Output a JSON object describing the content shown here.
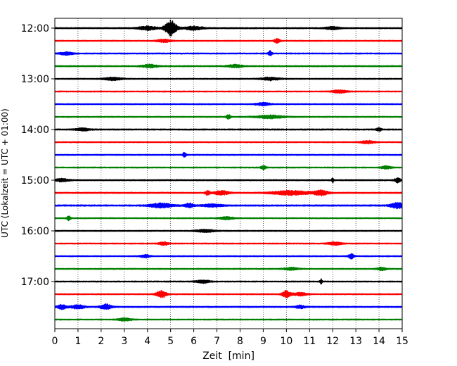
{
  "chart_data": {
    "type": "line",
    "title": "",
    "xlabel": "Zeit  [min]",
    "ylabel": "UTC (Lokalzeit = UTC + 01:00)",
    "xlim": [
      0,
      15
    ],
    "x_ticks": [
      0,
      1,
      2,
      3,
      4,
      5,
      6,
      7,
      8,
      9,
      10,
      11,
      12,
      13,
      14,
      15
    ],
    "x_tick_labels": [
      "0",
      "1",
      "2",
      "3",
      "4",
      "5",
      "6",
      "7",
      "8",
      "9",
      "10",
      "11",
      "12",
      "13",
      "14",
      "15"
    ],
    "y_tick_labels": [
      "12:00",
      "13:00",
      "14:00",
      "15:00",
      "16:00",
      "17:00"
    ],
    "x_grid": true,
    "grid_style": "dotted",
    "trace_interval_min": 15,
    "trace_colors": [
      "#000000",
      "#ff0000",
      "#0000ff",
      "#008000"
    ],
    "traces": [
      {
        "start": "12:00",
        "color": "#000000",
        "noise": 0.9,
        "events": [
          {
            "t": 5.0,
            "amp": 11,
            "width": 0.25
          },
          {
            "t": 4.0,
            "amp": 2.5,
            "width": 0.4
          },
          {
            "t": 6.0,
            "amp": 2.5,
            "width": 0.4
          },
          {
            "t": 12.0,
            "amp": 2,
            "width": 0.3
          }
        ]
      },
      {
        "start": "12:15",
        "color": "#ff0000",
        "noise": 0.8,
        "events": [
          {
            "t": 9.6,
            "amp": 3,
            "width": 0.12
          },
          {
            "t": 4.7,
            "amp": 2,
            "width": 0.3
          }
        ]
      },
      {
        "start": "12:30",
        "color": "#0000ff",
        "noise": 0.8,
        "events": [
          {
            "t": 9.3,
            "amp": 3.5,
            "width": 0.08
          },
          {
            "t": 0.5,
            "amp": 1.8,
            "width": 0.3
          }
        ]
      },
      {
        "start": "12:45",
        "color": "#008000",
        "noise": 0.9,
        "events": [
          {
            "t": 4.1,
            "amp": 2.2,
            "width": 0.3
          },
          {
            "t": 7.8,
            "amp": 2,
            "width": 0.3
          }
        ]
      },
      {
        "start": "13:00",
        "color": "#000000",
        "noise": 0.8,
        "events": [
          {
            "t": 2.5,
            "amp": 2,
            "width": 0.4
          },
          {
            "t": 9.3,
            "amp": 2,
            "width": 0.4
          }
        ]
      },
      {
        "start": "13:15",
        "color": "#ff0000",
        "noise": 0.8,
        "events": [
          {
            "t": 12.3,
            "amp": 2.2,
            "width": 0.3
          }
        ]
      },
      {
        "start": "13:30",
        "color": "#0000ff",
        "noise": 0.8,
        "events": [
          {
            "t": 9.0,
            "amp": 2,
            "width": 0.3
          }
        ]
      },
      {
        "start": "13:45",
        "color": "#008000",
        "noise": 0.8,
        "events": [
          {
            "t": 7.5,
            "amp": 3,
            "width": 0.1
          },
          {
            "t": 9.3,
            "amp": 2.2,
            "width": 0.6
          }
        ]
      },
      {
        "start": "14:00",
        "color": "#000000",
        "noise": 0.9,
        "events": [
          {
            "t": 14.0,
            "amp": 2.5,
            "width": 0.1
          },
          {
            "t": 1.2,
            "amp": 1.8,
            "width": 0.3
          }
        ]
      },
      {
        "start": "14:15",
        "color": "#ff0000",
        "noise": 0.8,
        "events": [
          {
            "t": 13.5,
            "amp": 2,
            "width": 0.3
          }
        ]
      },
      {
        "start": "14:30",
        "color": "#0000ff",
        "noise": 0.8,
        "events": [
          {
            "t": 5.6,
            "amp": 3.5,
            "width": 0.08
          }
        ]
      },
      {
        "start": "14:45",
        "color": "#008000",
        "noise": 0.8,
        "events": [
          {
            "t": 9.0,
            "amp": 2.8,
            "width": 0.1
          },
          {
            "t": 14.3,
            "amp": 2,
            "width": 0.2
          }
        ]
      },
      {
        "start": "15:00",
        "color": "#000000",
        "noise": 0.9,
        "events": [
          {
            "t": 12.0,
            "amp": 3.5,
            "width": 0.05
          },
          {
            "t": 14.8,
            "amp": 3.2,
            "width": 0.12
          },
          {
            "t": 0.3,
            "amp": 2,
            "width": 0.3
          }
        ]
      },
      {
        "start": "15:15",
        "color": "#ff0000",
        "noise": 0.9,
        "events": [
          {
            "t": 7.2,
            "amp": 3,
            "width": 0.3
          },
          {
            "t": 10.2,
            "amp": 3,
            "width": 0.8
          },
          {
            "t": 11.5,
            "amp": 3.5,
            "width": 0.3
          },
          {
            "t": 6.6,
            "amp": 3,
            "width": 0.1
          }
        ]
      },
      {
        "start": "15:30",
        "color": "#0000ff",
        "noise": 1.0,
        "events": [
          {
            "t": 4.6,
            "amp": 3,
            "width": 0.5
          },
          {
            "t": 5.8,
            "amp": 3,
            "width": 0.2
          },
          {
            "t": 14.8,
            "amp": 4,
            "width": 0.3
          },
          {
            "t": 6.8,
            "amp": 2,
            "width": 0.4
          }
        ]
      },
      {
        "start": "15:45",
        "color": "#008000",
        "noise": 0.8,
        "events": [
          {
            "t": 0.6,
            "amp": 3,
            "width": 0.08
          },
          {
            "t": 7.4,
            "amp": 1.8,
            "width": 0.3
          }
        ]
      },
      {
        "start": "16:00",
        "color": "#000000",
        "noise": 0.8,
        "events": [
          {
            "t": 6.5,
            "amp": 1.8,
            "width": 0.4
          }
        ]
      },
      {
        "start": "16:15",
        "color": "#ff0000",
        "noise": 0.8,
        "events": [
          {
            "t": 4.7,
            "amp": 2.2,
            "width": 0.2
          },
          {
            "t": 12.1,
            "amp": 2,
            "width": 0.3
          }
        ]
      },
      {
        "start": "16:30",
        "color": "#0000ff",
        "noise": 0.8,
        "events": [
          {
            "t": 12.8,
            "amp": 3.5,
            "width": 0.12
          },
          {
            "t": 3.9,
            "amp": 2,
            "width": 0.2
          }
        ]
      },
      {
        "start": "16:45",
        "color": "#008000",
        "noise": 0.8,
        "events": [
          {
            "t": 14.1,
            "amp": 2,
            "width": 0.2
          },
          {
            "t": 10.2,
            "amp": 1.8,
            "width": 0.3
          }
        ]
      },
      {
        "start": "17:00",
        "color": "#000000",
        "noise": 0.8,
        "events": [
          {
            "t": 11.5,
            "amp": 3.5,
            "width": 0.05
          },
          {
            "t": 6.4,
            "amp": 2,
            "width": 0.3
          }
        ]
      },
      {
        "start": "17:15",
        "color": "#ff0000",
        "noise": 0.8,
        "events": [
          {
            "t": 4.6,
            "amp": 5,
            "width": 0.22
          },
          {
            "t": 10.0,
            "amp": 5,
            "width": 0.18
          },
          {
            "t": 10.6,
            "amp": 2,
            "width": 0.3
          }
        ]
      },
      {
        "start": "17:30",
        "color": "#0000ff",
        "noise": 0.9,
        "events": [
          {
            "t": 0.3,
            "amp": 3,
            "width": 0.2
          },
          {
            "t": 2.2,
            "amp": 3.5,
            "width": 0.25
          },
          {
            "t": 1.0,
            "amp": 2.5,
            "width": 0.3
          },
          {
            "t": 10.6,
            "amp": 2,
            "width": 0.2
          }
        ]
      },
      {
        "start": "17:45",
        "color": "#008000",
        "noise": 0.8,
        "events": [
          {
            "t": 3.0,
            "amp": 1.8,
            "width": 0.3
          }
        ]
      }
    ]
  }
}
